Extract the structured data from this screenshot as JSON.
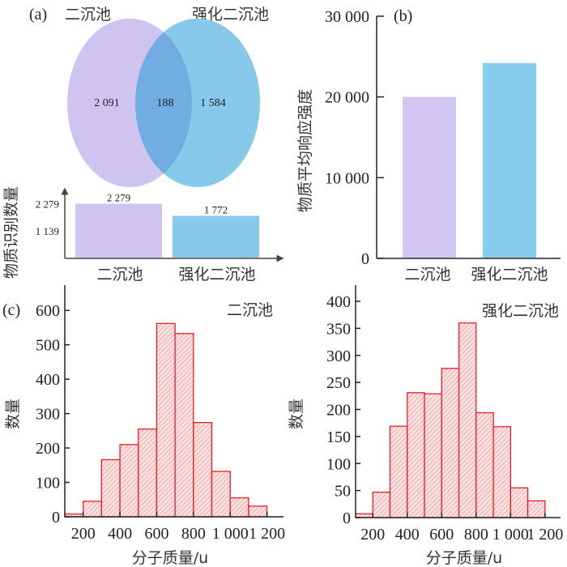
{
  "chart_data": [
    {
      "id": "a",
      "panel_label": "(a)",
      "type": "venn",
      "sets": [
        {
          "name": "二沉池",
          "only": 2091,
          "only_label": "2 091",
          "color": "#cfc3f0"
        },
        {
          "name": "强化二沉池",
          "only": 1584,
          "only_label": "1 584",
          "color": "#86c9ea"
        }
      ],
      "intersection": 188,
      "intersection_label": "188",
      "overlap_color": "#72ade2"
    },
    {
      "id": "a-bar",
      "type": "bar",
      "ylabel": "物质识别数量",
      "categories": [
        "二沉池",
        "强化二沉池"
      ],
      "values": [
        2279,
        1772
      ],
      "value_labels": [
        "2 279",
        "1 772"
      ],
      "yticks": [
        1139,
        2279
      ],
      "ytick_labels": [
        "1 139",
        "2 279"
      ],
      "ylim": [
        0,
        2800
      ],
      "colors": [
        "#cfc3f0",
        "#86c9ea"
      ]
    },
    {
      "id": "b",
      "panel_label": "(b)",
      "type": "bar",
      "ylabel": "物质平均响应强度",
      "xlabel": "",
      "categories": [
        "二沉池",
        "强化二沉池"
      ],
      "values": [
        20000,
        24200
      ],
      "yticks": [
        0,
        10000,
        20000,
        30000
      ],
      "ytick_labels": [
        "0",
        "10 000",
        "20 000",
        "30 000"
      ],
      "ylim": [
        0,
        30000
      ],
      "colors": [
        "#d2c6f4",
        "#86cdee"
      ]
    },
    {
      "id": "c-left",
      "panel_label": "(c)",
      "type": "bar",
      "subtype": "histogram",
      "title": "二沉池",
      "xlabel": "分子质量/u",
      "ylabel": "数量",
      "bin_edges": [
        100,
        200,
        300,
        400,
        500,
        600,
        700,
        800,
        900,
        1000,
        1100,
        1200
      ],
      "values": [
        8,
        45,
        166,
        210,
        255,
        562,
        533,
        274,
        132,
        55,
        31
      ],
      "xticks": [
        200,
        400,
        600,
        800,
        1000,
        1200
      ],
      "xtick_labels": [
        "200",
        "400",
        "600",
        "800",
        "1 000",
        "1 200"
      ],
      "yticks": [
        0,
        100,
        200,
        300,
        400,
        500,
        600
      ],
      "ytick_labels": [
        "0",
        "100",
        "200",
        "300",
        "400",
        "500",
        "600"
      ],
      "xlim": [
        100,
        1290
      ],
      "ylim": [
        0,
        650
      ],
      "edge_color": "#ee1c25",
      "hatch": "diagonal"
    },
    {
      "id": "c-right",
      "type": "bar",
      "subtype": "histogram",
      "title": "强化二沉池",
      "xlabel": "分子质量/u",
      "ylabel": "数量",
      "bin_edges": [
        100,
        200,
        300,
        400,
        500,
        600,
        700,
        800,
        900,
        1000,
        1100,
        1200
      ],
      "values": [
        7,
        47,
        169,
        231,
        229,
        276,
        360,
        194,
        168,
        55,
        31
      ],
      "xticks": [
        200,
        400,
        600,
        800,
        1000,
        1200
      ],
      "xtick_labels": [
        "200",
        "400",
        "600",
        "800",
        "1 000",
        "1 200"
      ],
      "yticks": [
        0,
        50,
        100,
        150,
        200,
        250,
        300,
        350,
        400
      ],
      "ytick_labels": [
        "0",
        "50",
        "100",
        "150",
        "200",
        "250",
        "300",
        "350",
        "400"
      ],
      "xlim": [
        100,
        1290
      ],
      "ylim": [
        0,
        415
      ],
      "edge_color": "#ee1c25",
      "hatch": "diagonal"
    }
  ]
}
